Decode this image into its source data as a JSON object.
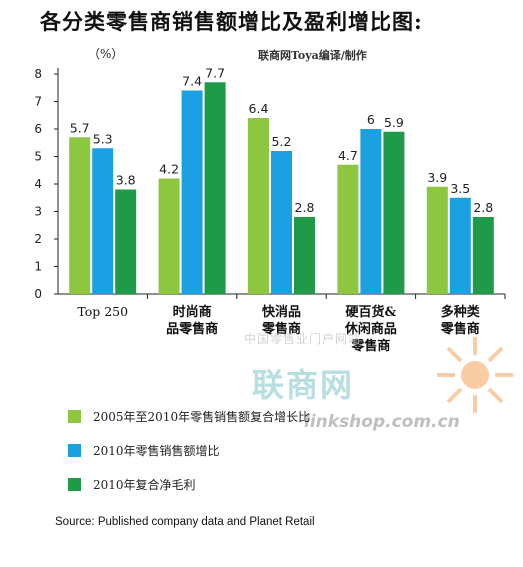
{
  "header": {
    "title": "各分类零售商销售额增比及盈利增比图:",
    "unit": "（%）",
    "credit": "联商网Toya编译/制作"
  },
  "colors": {
    "series1": "#8dc63f",
    "series2": "#1ba1e2",
    "series3": "#1e9a48"
  },
  "chart_data": {
    "type": "bar",
    "categories": [
      "Top 250",
      "时尚商\n品零售商",
      "快消品\n零售商",
      "硬百货&\n休闲商品\n零售商",
      "多种类\n零售商"
    ],
    "series": [
      {
        "name": "2005年至2010年零售销售额复合增长比",
        "values": [
          5.7,
          4.2,
          6.4,
          4.7,
          3.9
        ]
      },
      {
        "name": "2010年零售销售额增比",
        "values": [
          5.3,
          7.4,
          5.2,
          6.0,
          3.5
        ]
      },
      {
        "name": "2010年复合净毛利",
        "values": [
          3.8,
          7.7,
          2.8,
          5.9,
          2.8
        ]
      }
    ],
    "ylim": [
      0,
      8
    ],
    "yticks": [
      0,
      1,
      2,
      3,
      4,
      5,
      6,
      7,
      8
    ],
    "grid": false,
    "legend_placement": "bottom"
  },
  "source": "Source: Published company data and Planet Retail",
  "watermark": {
    "brand": "联商网",
    "url": "linkshop.com.cn",
    "cn": "中国零售业门户网站"
  }
}
